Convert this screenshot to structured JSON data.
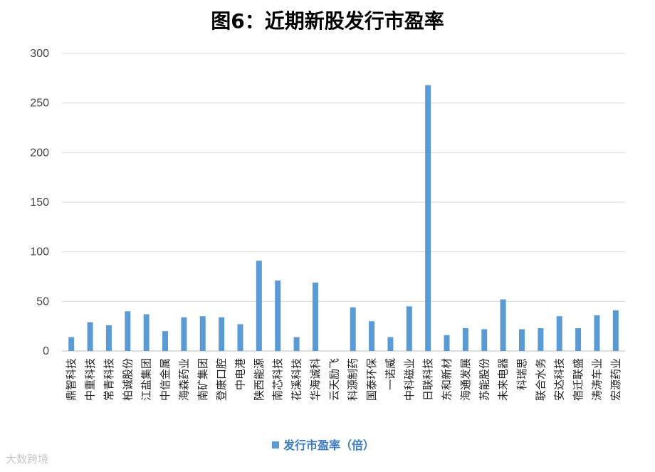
{
  "chart_data": {
    "type": "bar",
    "title": "图6：近期新股发行市盈率",
    "categories": [
      "鼎智科技",
      "中重科技",
      "常青科技",
      "柏诚股份",
      "江盐集团",
      "中信金属",
      "海森药业",
      "南矿集团",
      "登康口腔",
      "中电港",
      "陕西能源",
      "南芯科技",
      "花溪科技",
      "华海诚科",
      "云天励飞",
      "科源制药",
      "国泰环保",
      "一诺威",
      "中科磁业",
      "日联科技",
      "东和新材",
      "海通发展",
      "苏能股份",
      "未来电器",
      "科瑞思",
      "联合水务",
      "安达科技",
      "宿迁联盛",
      "涛涛车业",
      "宏源药业"
    ],
    "series": [
      {
        "name": "发行市盈率（倍）",
        "values": [
          14,
          29,
          26,
          40,
          37,
          20,
          34,
          35,
          34,
          27,
          91,
          71,
          14,
          69,
          0,
          44,
          30,
          14,
          45,
          268,
          16,
          23,
          22,
          52,
          22,
          23,
          35,
          23,
          36,
          41
        ]
      }
    ],
    "ylim": [
      0,
      300
    ],
    "yticks": [
      0,
      50,
      100,
      150,
      200,
      250,
      300
    ],
    "grid": true,
    "legend_position": "bottom",
    "bar_color": "#5b9bd5"
  },
  "watermark_text": "大数跨境"
}
